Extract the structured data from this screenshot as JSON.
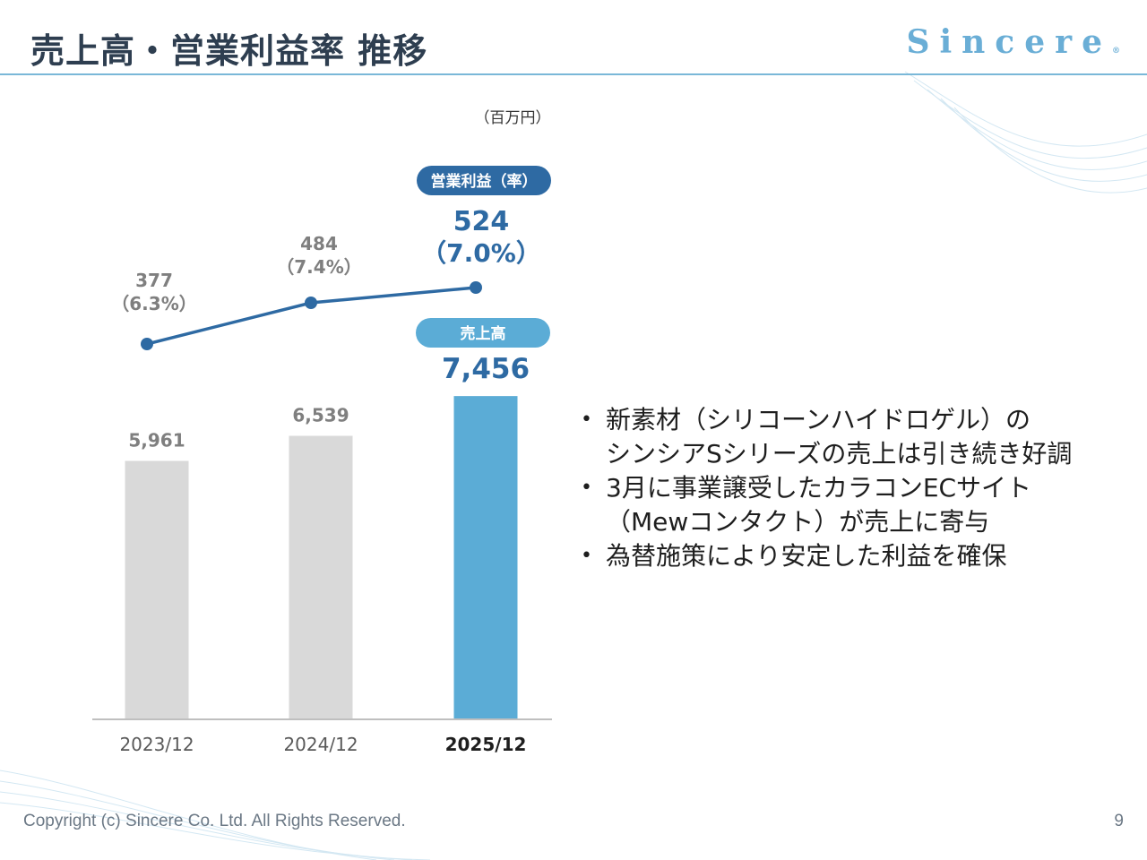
{
  "slide": {
    "title": "売上高・営業利益率 推移",
    "logo": "Sincere",
    "logo_mark": "®",
    "footer": "Copyright (c) Sincere Co. Ltd. All Rights Reserved.",
    "page_number": "9"
  },
  "colors": {
    "title_text": "#2e3e50",
    "logo": "#6aaed6",
    "bar_past": "#d9d9d9",
    "bar_current": "#5bacd6",
    "line": "#2e6aa3",
    "profit_badge": "#2e6aa3",
    "sales_badge": "#5bacd6",
    "label_gray": "#7f7f7f"
  },
  "chart_data": {
    "type": "bar+line",
    "unit": "（百万円）",
    "categories": [
      "2023/12",
      "2024/12",
      "2025/12"
    ],
    "series": [
      {
        "name": "売上高",
        "type": "bar",
        "values": [
          5961,
          6539,
          7456
        ],
        "labels": [
          "5,961",
          "6,539",
          "7,456"
        ]
      },
      {
        "name": "営業利益",
        "type": "line",
        "values": [
          377,
          484,
          524
        ],
        "labels": [
          "377",
          "484",
          "524"
        ]
      },
      {
        "name": "営業利益率",
        "type": "annotation",
        "values": [
          6.3,
          7.4,
          7.0
        ],
        "labels": [
          "（6.3%）",
          "（7.4%）",
          "（7.0%）"
        ]
      }
    ],
    "badges": {
      "operating_profit": "営業利益（率）",
      "sales": "売上高"
    },
    "highlight_index": 2,
    "bar_ylim": [
      0,
      7500
    ],
    "line_ylim": [
      0,
      700
    ]
  },
  "bullets": [
    {
      "lines": [
        "新素材（シリコーンハイドロゲル）の",
        "シンシアSシリーズの売上は引き続き好調"
      ]
    },
    {
      "lines": [
        "3月に事業譲受したカラコンECサイト",
        "（Mewコンタクト）が売上に寄与"
      ]
    },
    {
      "lines": [
        "為替施策により安定した利益を確保"
      ]
    }
  ],
  "bullet_glyph": "•"
}
